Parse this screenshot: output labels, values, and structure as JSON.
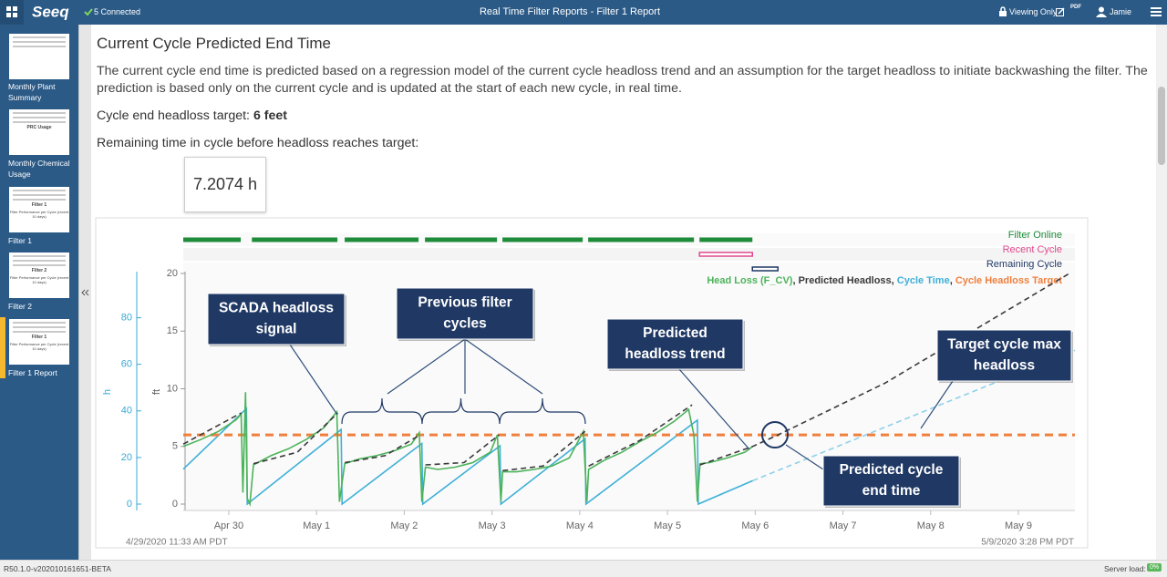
{
  "header": {
    "logo": "Seeq",
    "connection": "5 Connected",
    "title": "Real Time Filter Reports - Filter 1 Report",
    "viewing": "Viewing Only",
    "pdf": "PDF",
    "user": "Jamie"
  },
  "sidebar": {
    "items": [
      {
        "thumb_text": [],
        "label": "Monthly Plant Summary"
      },
      {
        "thumb_text": [
          "PRC Usage"
        ],
        "label": "Monthly Chemical Usage"
      },
      {
        "thumb_text": [
          "Filter 1",
          "Filter Performance per Cycle (recent 10 days)"
        ],
        "label": "Filter 1"
      },
      {
        "thumb_text": [
          "Filter 2",
          "Filter Performance per Cycle (recent 10 days)"
        ],
        "label": "Filter 2"
      },
      {
        "thumb_text": [
          "Filter 1",
          "Filter Performance per Cycle (recent 10 days)"
        ],
        "label": "Filter 1 Report"
      }
    ]
  },
  "report": {
    "heading": "Current Cycle Predicted End Time",
    "paragraph": "The current cycle end time is predicted based on a regression model of the current cycle headloss trend and an assumption for the target headloss to initiate backwashing the filter.  The prediction is based only on the current cycle and is updated at the start of each new cycle, in real time.",
    "target_label": "Cycle end headloss target:",
    "target_value": "6 feet",
    "remaining_label": "Remaining time in cycle before headloss reaches target:",
    "remaining_value": "7.2074 h"
  },
  "chart_data": {
    "type": "line",
    "ylabel": "ft",
    "y2label": "h",
    "xlim": [
      0,
      10.163
    ],
    "xticks": [
      {
        "value": 0.519,
        "label": "Apr 30"
      },
      {
        "value": 1.519,
        "label": "May 1"
      },
      {
        "value": 2.519,
        "label": "May 2"
      },
      {
        "value": 3.519,
        "label": "May 3"
      },
      {
        "value": 4.519,
        "label": "May 4"
      },
      {
        "value": 5.519,
        "label": "May 5"
      },
      {
        "value": 6.519,
        "label": "May 6"
      },
      {
        "value": 7.519,
        "label": "May 7"
      },
      {
        "value": 8.519,
        "label": "May 8"
      },
      {
        "value": 9.519,
        "label": "May 9"
      }
    ],
    "ylim": [
      0,
      20
    ],
    "yticks": [
      0,
      5,
      10,
      15,
      20
    ],
    "y2lim": [
      0,
      99
    ],
    "y2ticks": [
      0,
      20,
      40,
      60,
      80
    ],
    "y2color": "#3aa8d4",
    "start_label": "4/29/2020 11:33 AM PDT",
    "end_label": "5/9/2020 3:28 PM PDT",
    "capsule_lanes": [
      {
        "name": "Filter Online",
        "color": "#1e8c3a",
        "style": "solid",
        "capsules": [
          [
            0,
            0.655
          ],
          [
            0.782,
            1.757
          ],
          [
            1.84,
            2.682
          ],
          [
            2.755,
            3.576
          ],
          [
            3.638,
            4.553
          ],
          [
            4.615,
            5.821
          ],
          [
            5.884,
            6.487
          ]
        ]
      },
      {
        "name": "Recent Cycle",
        "color": "#e0498f",
        "style": "outline",
        "capsules": [
          [
            5.884,
            6.487
          ]
        ]
      },
      {
        "name": "Remaining Cycle",
        "color": "#1f3864",
        "style": "outline",
        "capsules": [
          [
            6.487,
            6.778
          ]
        ]
      }
    ],
    "legend_separator": ", ",
    "series": [
      {
        "name": "Head Loss (F_CV)",
        "color": "#4cb35a",
        "dash": false,
        "x": [
          0,
          0.2,
          0.4,
          0.6,
          0.66,
          0.68,
          0.71,
          0.73,
          0.76,
          0.8,
          1.0,
          1.2,
          1.4,
          1.6,
          1.75,
          1.78,
          1.84,
          2.0,
          2.2,
          2.4,
          2.6,
          2.69,
          2.72,
          2.76,
          2.9,
          3.1,
          3.3,
          3.5,
          3.58,
          3.62,
          3.64,
          3.8,
          4.0,
          4.2,
          4.4,
          4.56,
          4.6,
          4.62,
          4.8,
          5.0,
          5.2,
          5.4,
          5.6,
          5.76,
          5.82,
          5.86,
          5.89,
          6.0,
          6.2,
          6.4,
          6.49
        ],
        "values": [
          5.0,
          5.6,
          6.3,
          7.3,
          7.8,
          1,
          9.7,
          0.5,
          0,
          3.4,
          4.2,
          4.8,
          5.6,
          6.6,
          8.0,
          0.2,
          3.5,
          3.9,
          4.2,
          4.6,
          5.2,
          6.2,
          0.2,
          3.2,
          3.0,
          3.2,
          3.6,
          4.5,
          6.0,
          0.2,
          2.8,
          2.8,
          3.0,
          3.3,
          4.0,
          6.3,
          0.2,
          3.0,
          3.8,
          4.5,
          5.4,
          6.2,
          7.2,
          8.2,
          6.0,
          0.2,
          3.5,
          3.6,
          4.0,
          4.5,
          5.0
        ]
      },
      {
        "name": "Predicted Headloss",
        "color": "#3a3a3a",
        "dash": true,
        "x": [
          0,
          0.66,
          null,
          0.8,
          1.3,
          1.76,
          null,
          1.84,
          2.3,
          2.7,
          null,
          2.76,
          3.2,
          3.6,
          null,
          3.64,
          4.1,
          4.58,
          null,
          4.62,
          5.2,
          5.8,
          null,
          5.89,
          6.49,
          6.78,
          8.0,
          10.1
        ],
        "values": [
          5.2,
          7.9,
          null,
          3.5,
          4.5,
          7.9,
          null,
          3.6,
          4.2,
          6.0,
          null,
          3.4,
          3.6,
          6.0,
          null,
          2.9,
          3.3,
          6.3,
          null,
          3.3,
          5.5,
          8.6,
          null,
          3.4,
          5.0,
          6.0,
          10.5,
          20.0
        ]
      },
      {
        "name": "Cycle Time",
        "color": "#3fb0d8",
        "dash": false,
        "axis": "y2",
        "x": [
          0,
          0.72,
          0.73,
          1.8,
          1.81,
          2.72,
          2.73,
          3.61,
          3.62,
          4.58,
          4.59,
          5.86,
          5.87,
          6.49
        ],
        "values": [
          15,
          41,
          0,
          32,
          0,
          26,
          0,
          25,
          0,
          28,
          0,
          36,
          0,
          10
        ]
      },
      {
        "name": "Cycle Headloss Target",
        "color": "#f07f3c",
        "dash": true,
        "wide": true,
        "x": [
          0,
          10.163
        ],
        "values": [
          6,
          6
        ]
      },
      {
        "color": "#8fd0ea",
        "dash": true,
        "axis": "y2",
        "x": [
          6.49,
          10.163
        ],
        "values": [
          10,
          66
        ]
      }
    ],
    "annotations": [
      {
        "lines": [
          "SCADA headloss",
          "signal"
        ]
      },
      {
        "lines": [
          "Previous filter",
          "cycles"
        ]
      },
      {
        "lines": [
          "Predicted",
          "headloss trend"
        ]
      },
      {
        "lines": [
          "Target cycle max",
          "headloss"
        ]
      },
      {
        "lines": [
          "Predicted cycle",
          "end time"
        ]
      }
    ]
  },
  "footer": {
    "version": "R50.1.0-v202010161651-BETA",
    "server_load_label": "Server load:",
    "server_load_value": "0%"
  }
}
